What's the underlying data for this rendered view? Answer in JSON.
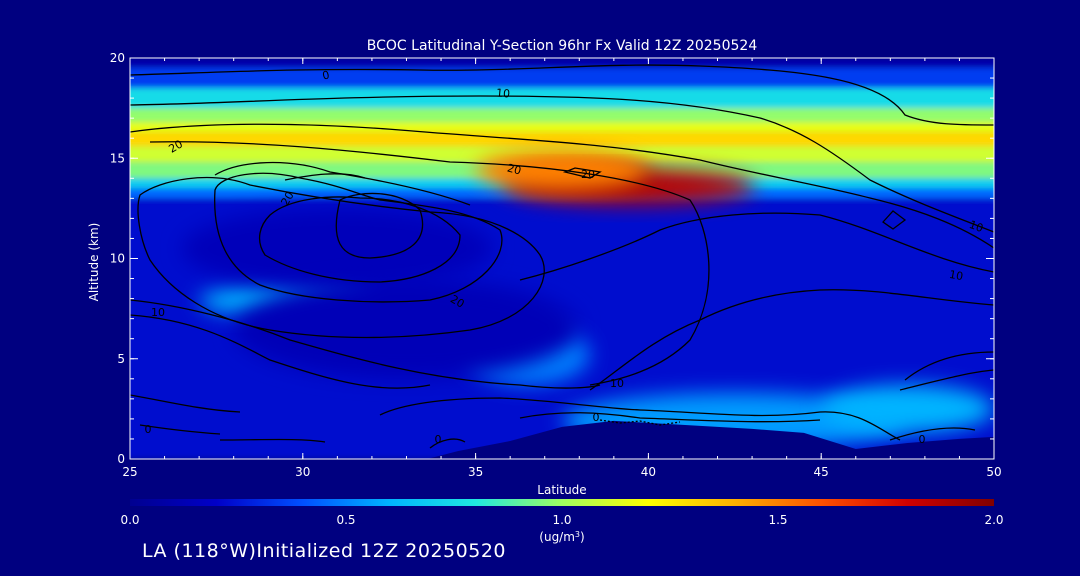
{
  "chart_data": {
    "type": "heatmap",
    "title": "BCOC Latitudinal Y-Section 96hr  Fx Valid 12Z 20250524",
    "xlabel": "Latitude",
    "ylabel": "Altitude (km)",
    "xlim": [
      25,
      50
    ],
    "ylim": [
      0,
      20
    ],
    "x_ticks": [
      "25",
      "30",
      "35",
      "40",
      "45",
      "50"
    ],
    "y_ticks": [
      "0",
      "5",
      "10",
      "15",
      "20"
    ],
    "colorbar": {
      "range": [
        0.0,
        2.0
      ],
      "ticks": [
        "0.0",
        "0.5",
        "1.0",
        "1.5",
        "2.0"
      ],
      "unit_label": "(ug/m",
      "unit_sup": "3",
      "unit_close": ")",
      "colors": [
        "#000090",
        "#0000c8",
        "#0050ff",
        "#00b4ff",
        "#20e8e0",
        "#a0ff60",
        "#ffff00",
        "#ffb000",
        "#ff5000",
        "#d00000",
        "#800000"
      ]
    },
    "contour_labels": [
      "0",
      "10",
      "20",
      "20",
      "20",
      "20",
      "10",
      "10",
      "20",
      "10",
      "0",
      "0",
      "0",
      "10",
      "0"
    ],
    "bands": [
      {
        "y0": 19.5,
        "y1": 20.0,
        "v": 0.1
      },
      {
        "y0": 18.5,
        "y1": 19.5,
        "v": 0.35
      },
      {
        "y0": 17.5,
        "y1": 18.5,
        "v": 0.75
      },
      {
        "y0": 16.8,
        "y1": 17.5,
        "v": 0.98
      },
      {
        "y0": 16.3,
        "y1": 16.8,
        "v": 1.15
      },
      {
        "y0": 15.6,
        "y1": 16.3,
        "v": 1.3
      },
      {
        "y0": 14.8,
        "y1": 15.6,
        "v": 1.1
      },
      {
        "y0": 14.0,
        "y1": 14.8,
        "v": 0.95
      },
      {
        "y0": 13.5,
        "y1": 14.0,
        "v": 0.7
      },
      {
        "y0": 13.0,
        "y1": 13.5,
        "v": 0.45
      },
      {
        "y0": 0.0,
        "y1": 13.0,
        "v": 0.22
      }
    ],
    "blobs": [
      {
        "x": 39.5,
        "y": 13.6,
        "rx": 3.6,
        "ry": 0.9,
        "v": 1.85
      },
      {
        "x": 38.0,
        "y": 14.0,
        "rx": 2.2,
        "ry": 0.6,
        "v": 1.95
      },
      {
        "x": 37.5,
        "y": 14.4,
        "rx": 2.5,
        "ry": 1.0,
        "v": 1.5
      },
      {
        "x": 29.5,
        "y": 7.9,
        "rx": 2.5,
        "ry": 0.8,
        "v": 0.6
      },
      {
        "x": 36.5,
        "y": 5.2,
        "rx": 1.8,
        "ry": 1.5,
        "v": 0.5
      },
      {
        "x": 42.5,
        "y": 1.9,
        "rx": 5.0,
        "ry": 1.4,
        "v": 0.55
      },
      {
        "x": 47.5,
        "y": 2.5,
        "rx": 2.5,
        "ry": 1.2,
        "v": 0.6
      },
      {
        "x": 31.0,
        "y": 10.5,
        "rx": 4.5,
        "ry": 2.0,
        "v": 0.15
      },
      {
        "x": 33.0,
        "y": 6.5,
        "rx": 5.0,
        "ry": 2.5,
        "v": 0.14
      }
    ],
    "terrain": [
      [
        33.6,
        0.0
      ],
      [
        34.5,
        0.4
      ],
      [
        36.0,
        0.9
      ],
      [
        37.5,
        1.6
      ],
      [
        39.0,
        1.9
      ],
      [
        41.0,
        1.7
      ],
      [
        43.0,
        1.5
      ],
      [
        44.5,
        1.3
      ],
      [
        46.0,
        0.5
      ],
      [
        47.5,
        0.8
      ],
      [
        49.0,
        1.0
      ],
      [
        50.0,
        1.1
      ],
      [
        50.0,
        0.0
      ]
    ]
  },
  "footer": {
    "initialized": "LA (118°W)Initialized 12Z 20250520"
  }
}
